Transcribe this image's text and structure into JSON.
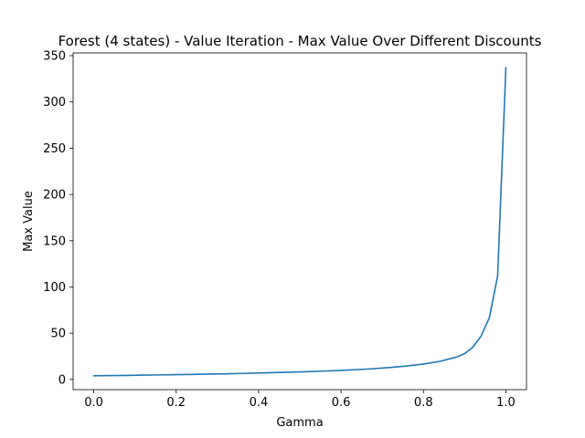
{
  "chart_data": {
    "type": "line",
    "title": "Forest (4 states) - Value Iteration - Max Value Over Different Discounts",
    "xlabel": "Gamma",
    "ylabel": "Max Value",
    "xlim": [
      -0.05,
      1.05
    ],
    "ylim": [
      -11,
      353
    ],
    "xticks": [
      0.0,
      0.2,
      0.4,
      0.6,
      0.8,
      1.0
    ],
    "xtick_labels": [
      "0.0",
      "0.2",
      "0.4",
      "0.6",
      "0.8",
      "1.0"
    ],
    "yticks": [
      0,
      50,
      100,
      150,
      200,
      250,
      300,
      350
    ],
    "ytick_labels": [
      "0",
      "50",
      "100",
      "150",
      "200",
      "250",
      "300",
      "350"
    ],
    "grid": false,
    "legend": "none",
    "series": [
      {
        "color": "#1f77b4",
        "x": [
          0.0,
          0.04,
          0.08,
          0.12,
          0.16,
          0.2,
          0.24,
          0.28,
          0.32,
          0.36,
          0.4,
          0.44,
          0.48,
          0.52,
          0.56,
          0.6,
          0.64,
          0.68,
          0.72,
          0.76,
          0.8,
          0.84,
          0.88,
          0.9,
          0.92,
          0.94,
          0.96,
          0.98,
          1.0
        ],
        "y": [
          4.0,
          4.2,
          4.4,
          4.7,
          4.9,
          5.2,
          5.5,
          5.8,
          6.1,
          6.5,
          6.9,
          7.4,
          7.9,
          8.4,
          9.1,
          9.8,
          10.7,
          11.7,
          13.0,
          14.6,
          16.7,
          19.6,
          24.2,
          28.0,
          35.0,
          47.0,
          67.0,
          112.0,
          337.0
        ]
      }
    ]
  }
}
